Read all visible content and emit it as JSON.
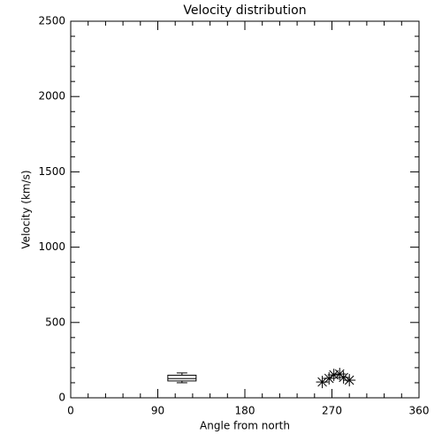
{
  "chart_data": {
    "type": "box",
    "title": "Velocity distribution",
    "x_label": "Angle from north",
    "y_label": "Velocity (km/s)",
    "xlim": [
      0,
      360
    ],
    "xticks": [
      0,
      90,
      180,
      270,
      360
    ],
    "ylim": [
      0,
      2500
    ],
    "yticks": [
      0,
      500,
      1000,
      1500,
      2000,
      2500
    ],
    "color": "#000000",
    "boxes": [
      {
        "x": 115,
        "whisker_low": 100,
        "q1": 112,
        "median": 128,
        "q3": 150,
        "whisker_high": 165
      }
    ],
    "overlay": {
      "type": "scatter",
      "marker": "asterisk",
      "x": [
        260,
        267,
        272,
        278,
        282,
        288
      ],
      "values": [
        105,
        129,
        152,
        158,
        135,
        117
      ]
    }
  }
}
